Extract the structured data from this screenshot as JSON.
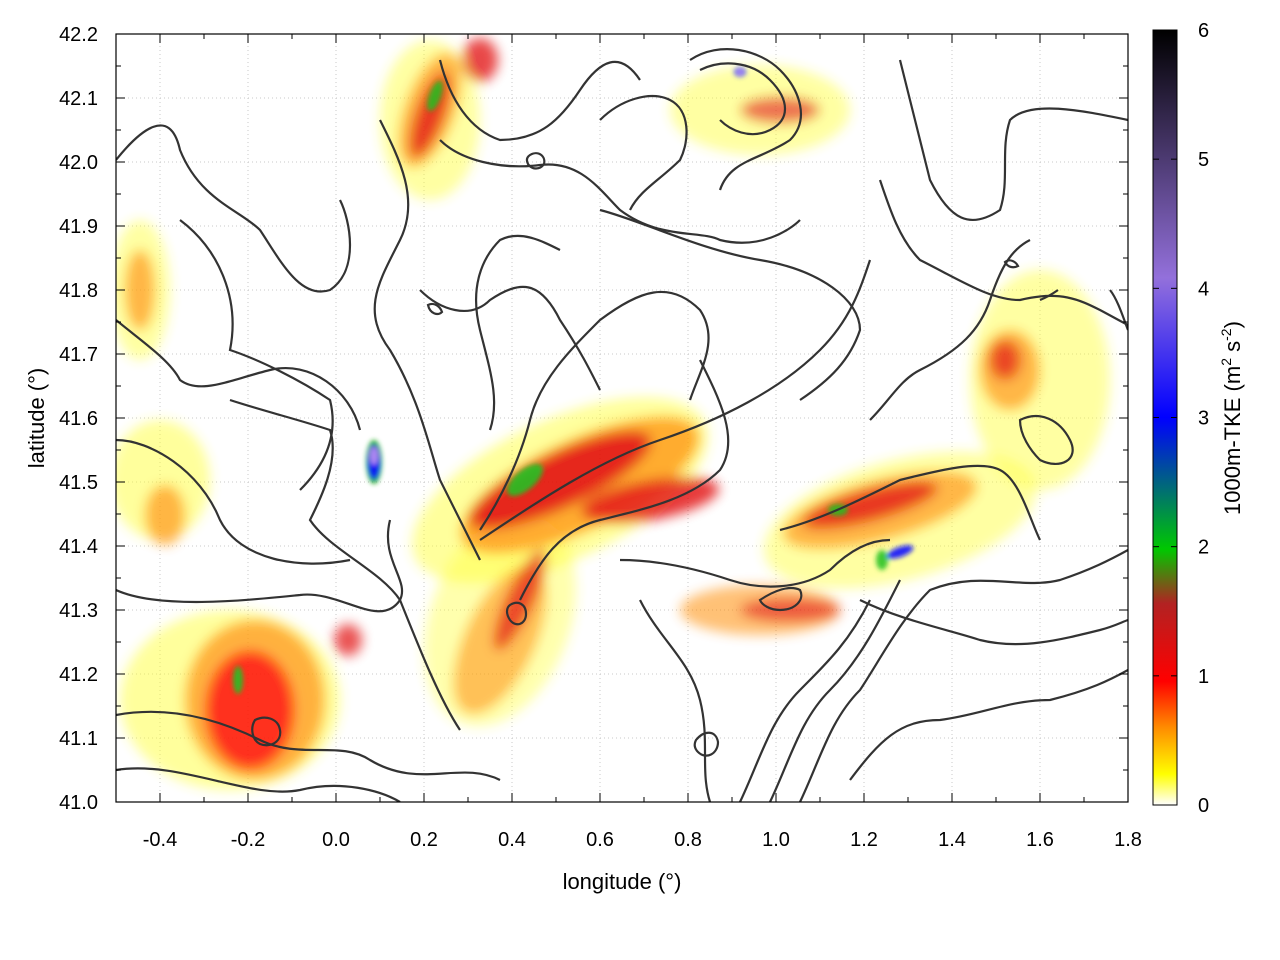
{
  "chart_data": {
    "type": "heatmap",
    "title": "",
    "xlabel": "longitude (°)",
    "ylabel": "latitude (°)",
    "colorbar_label": "1000m-TKE (m2 s-2)",
    "xlim": [
      -0.5,
      1.8
    ],
    "ylim": [
      41.0,
      42.2
    ],
    "zlim": [
      0,
      6
    ],
    "x_ticks": [
      -0.4,
      -0.2,
      0.0,
      0.2,
      0.4,
      0.6,
      0.8,
      1.0,
      1.2,
      1.4,
      1.6,
      1.8
    ],
    "x_tick_labels": [
      "-0.4",
      "-0.2",
      "0.0",
      "0.2",
      "0.4",
      "0.6",
      "0.8",
      "1.0",
      "1.2",
      "1.4",
      "1.6",
      "1.8"
    ],
    "y_ticks": [
      41.0,
      41.1,
      41.2,
      41.3,
      41.4,
      41.5,
      41.6,
      41.7,
      41.8,
      41.9,
      42.0,
      42.1,
      42.2
    ],
    "y_tick_labels": [
      "41.0",
      "41.1",
      "41.2",
      "41.3",
      "41.4",
      "41.5",
      "41.6",
      "41.7",
      "41.8",
      "41.9",
      "42.0",
      "42.1",
      "42.2"
    ],
    "colorbar_ticks": [
      0,
      1,
      2,
      3,
      4,
      5,
      6
    ],
    "colorbar_tick_labels": [
      "0",
      "1",
      "2",
      "3",
      "4",
      "5",
      "6"
    ],
    "colormap": [
      "#ffffff",
      "#ffff00",
      "#ff8c00",
      "#ff0000",
      "#b22222",
      "#00c800",
      "#0000ff",
      "#9370db",
      "#000000"
    ],
    "grid": true,
    "contour_color": "#333333",
    "hotspots": [
      {
        "lon": 0.09,
        "lat": 41.53,
        "value": 4.2
      },
      {
        "lon": 0.46,
        "lat": 41.48,
        "value": 2.1
      },
      {
        "lon": 0.65,
        "lat": 41.47,
        "value": 1.4
      },
      {
        "lon": 1.28,
        "lat": 41.39,
        "value": 3.1
      },
      {
        "lon": 1.12,
        "lat": 41.46,
        "value": 1.9
      },
      {
        "lon": 0.91,
        "lat": 42.14,
        "value": 3.5
      },
      {
        "lon": 0.23,
        "lat": 42.08,
        "value": 1.8
      },
      {
        "lon": -0.22,
        "lat": 41.2,
        "value": 2.0
      },
      {
        "lon": -0.17,
        "lat": 41.1,
        "value": 1.2
      },
      {
        "lon": -0.46,
        "lat": 41.8,
        "value": 0.9
      },
      {
        "lon": 1.52,
        "lat": 41.7,
        "value": 1.0
      },
      {
        "lon": 0.3,
        "lat": 41.25,
        "value": 1.0
      },
      {
        "lon": 0.8,
        "lat": 41.3,
        "value": 1.0
      }
    ]
  }
}
